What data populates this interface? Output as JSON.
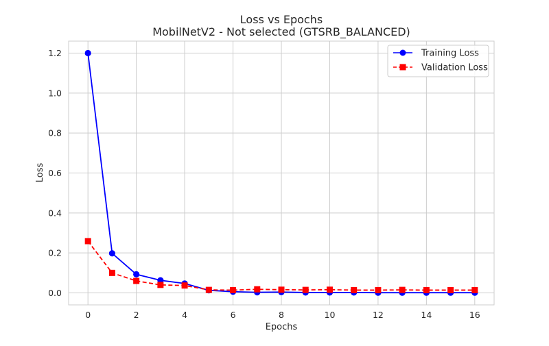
{
  "chart_data": {
    "type": "line",
    "title": "Loss vs Epochs",
    "subtitle": "MobilNetV2 - Not selected (GTSRB_BALANCED)",
    "xlabel": "Epochs",
    "ylabel": "Loss",
    "x": [
      0,
      1,
      2,
      3,
      4,
      5,
      6,
      7,
      8,
      9,
      10,
      11,
      12,
      13,
      14,
      15,
      16
    ],
    "xlim": [
      -0.8,
      16.8
    ],
    "ylim": [
      -0.06,
      1.26
    ],
    "x_ticks": [
      "0",
      "2",
      "4",
      "6",
      "8",
      "10",
      "12",
      "14",
      "16"
    ],
    "y_ticks": [
      "0.0",
      "0.2",
      "0.4",
      "0.6",
      "0.8",
      "1.0",
      "1.2"
    ],
    "grid": true,
    "legend_position": "top-right",
    "series": [
      {
        "name": "Training Loss",
        "color": "#0000ff",
        "line_style": "solid",
        "marker": "circle",
        "values": [
          1.2,
          0.198,
          0.093,
          0.063,
          0.047,
          0.013,
          0.006,
          0.003,
          0.004,
          0.002,
          0.002,
          0.002,
          0.001,
          0.001,
          0.001,
          0.001,
          0.001
        ]
      },
      {
        "name": "Validation Loss",
        "color": "#ff0000",
        "line_style": "dashed",
        "marker": "square",
        "values": [
          0.259,
          0.1,
          0.06,
          0.04,
          0.037,
          0.015,
          0.014,
          0.018,
          0.016,
          0.015,
          0.016,
          0.014,
          0.014,
          0.015,
          0.014,
          0.014,
          0.014
        ]
      }
    ]
  }
}
